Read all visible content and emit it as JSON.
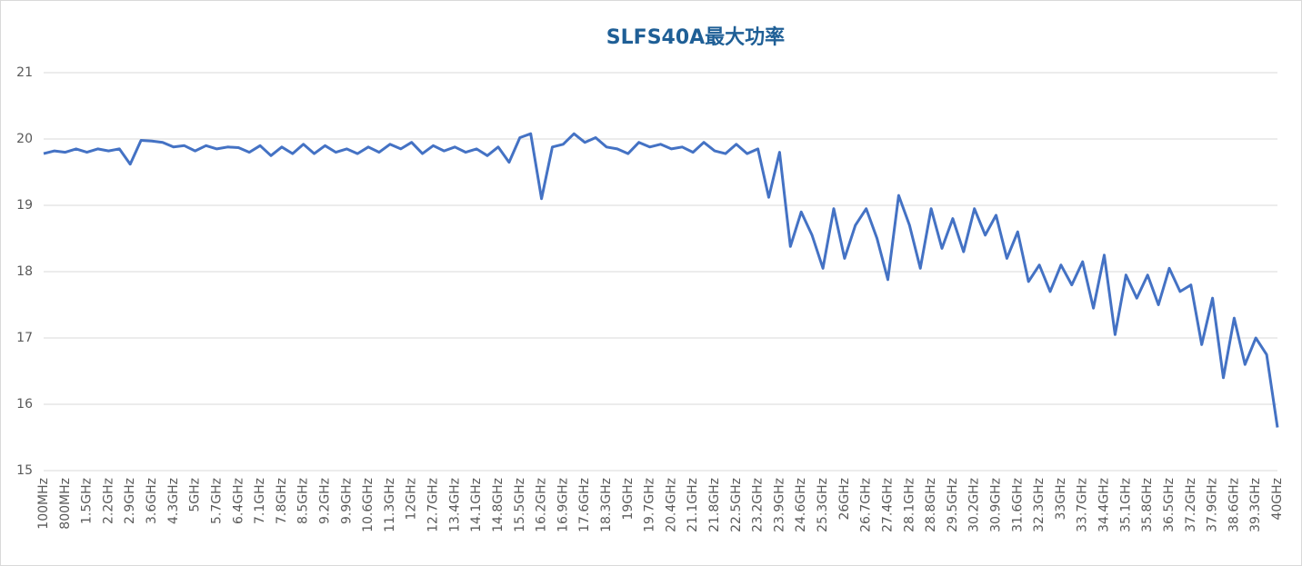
{
  "chart_data": {
    "type": "line",
    "title": "SLFS40A最大功率",
    "categories": [
      "100MHz",
      null,
      "800MHz",
      null,
      "1.5GHz",
      null,
      "2.2GHz",
      null,
      "2.9GHz",
      null,
      "3.6GHz",
      null,
      "4.3GHz",
      null,
      "5GHz",
      null,
      "5.7GHz",
      null,
      "6.4GHz",
      null,
      "7.1GHz",
      null,
      "7.8GHz",
      null,
      "8.5GHz",
      null,
      "9.2GHz",
      null,
      "9.9GHz",
      null,
      "10.6GHz",
      null,
      "11.3GHz",
      null,
      "12GHz",
      null,
      "12.7GHz",
      null,
      "13.4GHz",
      null,
      "14.1GHz",
      null,
      "14.8GHz",
      null,
      "15.5GHz",
      null,
      "16.2GHz",
      null,
      "16.9GHz",
      null,
      "17.6GHz",
      null,
      "18.3GHz",
      null,
      "19GHz",
      null,
      "19.7GHz",
      null,
      "20.4GHz",
      null,
      "21.1GHz",
      null,
      "21.8GHz",
      null,
      "22.5GHz",
      null,
      "23.2GHz",
      null,
      "23.9GHz",
      null,
      "24.6GHz",
      null,
      "25.3GHz",
      null,
      "26GHz",
      null,
      "26.7GHz",
      null,
      "27.4GHz",
      null,
      "28.1GHz",
      null,
      "28.8GHz",
      null,
      "29.5GHz",
      null,
      "30.2GHz",
      null,
      "30.9GHz",
      null,
      "31.6GHz",
      null,
      "32.3GHz",
      null,
      "33GHz",
      null,
      "33.7GHz",
      null,
      "34.4GHz",
      null,
      "35.1GHz",
      null,
      "35.8GHz",
      null,
      "36.5GHz",
      null,
      "37.2GHz",
      null,
      "37.9GHz",
      null,
      "38.6GHz",
      null,
      "39.3GHz",
      null,
      "40GHz"
    ],
    "series": [
      {
        "name": "SLFS40A",
        "color": "#4472c4",
        "values": [
          19.78,
          19.82,
          19.8,
          19.85,
          19.8,
          19.85,
          19.82,
          19.85,
          19.62,
          19.98,
          19.97,
          19.95,
          19.88,
          19.9,
          19.82,
          19.9,
          19.85,
          19.88,
          19.87,
          19.8,
          19.9,
          19.75,
          19.88,
          19.78,
          19.92,
          19.78,
          19.9,
          19.8,
          19.85,
          19.78,
          19.88,
          19.8,
          19.92,
          19.85,
          19.95,
          19.78,
          19.9,
          19.82,
          19.88,
          19.8,
          19.85,
          19.75,
          19.88,
          19.65,
          20.02,
          20.08,
          19.1,
          19.88,
          19.92,
          20.08,
          19.95,
          20.02,
          19.88,
          19.85,
          19.78,
          19.95,
          19.88,
          19.92,
          19.85,
          19.88,
          19.8,
          19.95,
          19.82,
          19.78,
          19.92,
          19.78,
          19.85,
          19.12,
          19.8,
          18.38,
          18.9,
          18.55,
          18.05,
          18.95,
          18.2,
          18.7,
          18.95,
          18.5,
          17.88,
          19.15,
          18.7,
          18.05,
          18.95,
          18.35,
          18.8,
          18.3,
          18.95,
          18.55,
          18.85,
          18.2,
          18.6,
          17.85,
          18.1,
          17.7,
          18.1,
          17.8,
          18.15,
          17.45,
          18.25,
          17.05,
          17.95,
          17.6,
          17.95,
          17.5,
          18.05,
          17.7,
          17.8,
          16.9,
          17.6,
          16.4,
          17.3,
          16.6,
          17.0,
          16.75,
          15.65
        ]
      }
    ],
    "ylim": [
      15,
      21
    ],
    "yticks": [
      15,
      16,
      17,
      18,
      19,
      20,
      21
    ],
    "grid": true
  }
}
